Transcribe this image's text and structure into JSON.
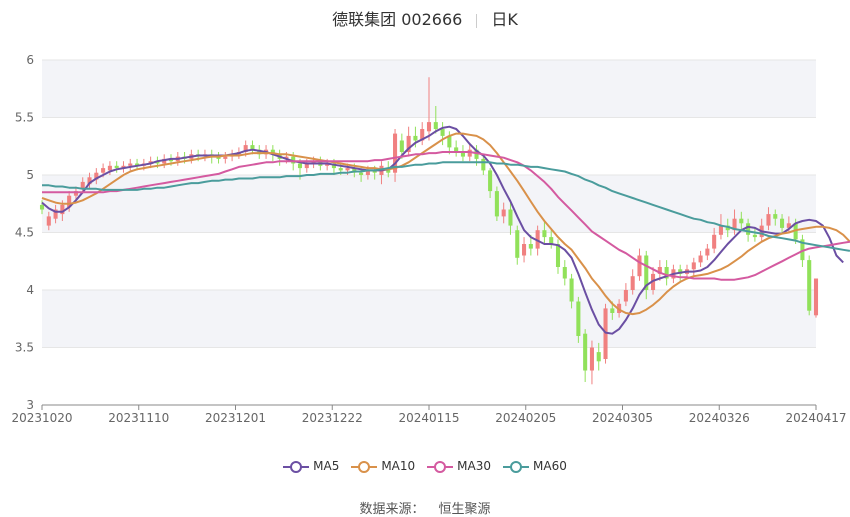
{
  "header": {
    "title": "德联集团 002666",
    "period": "日K"
  },
  "footer": {
    "source_label": "数据来源：",
    "source_name": "恒生聚源"
  },
  "colors": {
    "up": "#F08080",
    "down": "#91E15A",
    "MA5": "#6B4FA3",
    "MA10": "#D9914A",
    "MA30": "#D45AA0",
    "MA60": "#4A9C9C",
    "grid": "#e6e6e6",
    "band": "#f3f4f8"
  },
  "chart_data": {
    "type": "candlestick",
    "ylim": [
      3,
      6
    ],
    "yticks": [
      3,
      3.5,
      4,
      4.5,
      5,
      5.5,
      6
    ],
    "xticks": [
      "20231020",
      "20231110",
      "20231201",
      "20231222",
      "20240115",
      "20240205",
      "20240305",
      "20240326",
      "20240417"
    ],
    "candles": [
      [
        4.74,
        4.7,
        4.78,
        4.66
      ],
      [
        4.56,
        4.64,
        4.68,
        4.52
      ],
      [
        4.62,
        4.7,
        4.74,
        4.58
      ],
      [
        4.66,
        4.74,
        4.78,
        4.6
      ],
      [
        4.72,
        4.82,
        4.86,
        4.68
      ],
      [
        4.82,
        4.86,
        4.9,
        4.78
      ],
      [
        4.88,
        4.94,
        4.98,
        4.84
      ],
      [
        4.92,
        4.98,
        5.02,
        4.88
      ],
      [
        4.96,
        5.02,
        5.06,
        4.92
      ],
      [
        5.02,
        5.06,
        5.1,
        4.98
      ],
      [
        5.04,
        5.08,
        5.12,
        5.0
      ],
      [
        5.08,
        5.06,
        5.12,
        5.02
      ],
      [
        5.06,
        5.08,
        5.12,
        5.02
      ],
      [
        5.08,
        5.1,
        5.14,
        5.04
      ],
      [
        5.1,
        5.08,
        5.14,
        5.04
      ],
      [
        5.08,
        5.1,
        5.14,
        5.04
      ],
      [
        5.1,
        5.12,
        5.16,
        5.06
      ],
      [
        5.12,
        5.1,
        5.16,
        5.06
      ],
      [
        5.1,
        5.14,
        5.18,
        5.06
      ],
      [
        5.14,
        5.12,
        5.18,
        5.08
      ],
      [
        5.12,
        5.16,
        5.2,
        5.08
      ],
      [
        5.16,
        5.14,
        5.2,
        5.1
      ],
      [
        5.14,
        5.18,
        5.22,
        5.1
      ],
      [
        5.18,
        5.16,
        5.22,
        5.12
      ],
      [
        5.16,
        5.18,
        5.22,
        5.12
      ],
      [
        5.18,
        5.16,
        5.22,
        5.1
      ],
      [
        5.16,
        5.14,
        5.2,
        5.1
      ],
      [
        5.14,
        5.16,
        5.2,
        5.1
      ],
      [
        5.16,
        5.18,
        5.22,
        5.12
      ],
      [
        5.18,
        5.2,
        5.24,
        5.14
      ],
      [
        5.2,
        5.26,
        5.3,
        5.16
      ],
      [
        5.26,
        5.22,
        5.3,
        5.18
      ],
      [
        5.22,
        5.18,
        5.26,
        5.14
      ],
      [
        5.18,
        5.22,
        5.26,
        5.14
      ],
      [
        5.22,
        5.18,
        5.26,
        5.12
      ],
      [
        5.18,
        5.14,
        5.22,
        5.08
      ],
      [
        5.14,
        5.16,
        5.2,
        5.1
      ],
      [
        5.16,
        5.1,
        5.2,
        5.04
      ],
      [
        5.1,
        5.06,
        5.14,
        4.96
      ],
      [
        5.06,
        5.1,
        5.14,
        5.02
      ],
      [
        5.1,
        5.12,
        5.16,
        5.06
      ],
      [
        5.12,
        5.08,
        5.16,
        5.04
      ],
      [
        5.08,
        5.1,
        5.14,
        5.04
      ],
      [
        5.1,
        5.06,
        5.14,
        5.0
      ],
      [
        5.06,
        5.04,
        5.1,
        5.0
      ],
      [
        5.04,
        5.06,
        5.1,
        5.0
      ],
      [
        5.06,
        5.02,
        5.1,
        4.98
      ],
      [
        5.02,
        5.0,
        5.06,
        4.94
      ],
      [
        5.0,
        5.04,
        5.08,
        4.96
      ],
      [
        5.04,
        5.02,
        5.08,
        4.96
      ],
      [
        5.0,
        5.08,
        5.12,
        4.92
      ],
      [
        5.06,
        5.02,
        5.12,
        4.98
      ],
      [
        5.02,
        5.36,
        5.4,
        4.94
      ],
      [
        5.3,
        5.2,
        5.36,
        5.14
      ],
      [
        5.2,
        5.34,
        5.42,
        5.16
      ],
      [
        5.34,
        5.3,
        5.42,
        5.24
      ],
      [
        5.3,
        5.4,
        5.46,
        5.26
      ],
      [
        5.38,
        5.46,
        5.85,
        5.3
      ],
      [
        5.46,
        5.4,
        5.6,
        5.36
      ],
      [
        5.4,
        5.34,
        5.46,
        5.26
      ],
      [
        5.34,
        5.24,
        5.38,
        5.18
      ],
      [
        5.24,
        5.2,
        5.3,
        5.16
      ],
      [
        5.2,
        5.16,
        5.26,
        5.12
      ],
      [
        5.16,
        5.22,
        5.28,
        5.12
      ],
      [
        5.22,
        5.14,
        5.26,
        5.08
      ],
      [
        5.14,
        5.04,
        5.18,
        5.0
      ],
      [
        5.04,
        4.86,
        5.06,
        4.8
      ],
      [
        4.86,
        4.64,
        4.9,
        4.6
      ],
      [
        4.64,
        4.7,
        4.76,
        4.58
      ],
      [
        4.7,
        4.56,
        4.76,
        4.48
      ],
      [
        4.52,
        4.28,
        4.56,
        4.22
      ],
      [
        4.3,
        4.4,
        4.46,
        4.24
      ],
      [
        4.4,
        4.36,
        4.48,
        4.3
      ],
      [
        4.36,
        4.52,
        4.56,
        4.3
      ],
      [
        4.52,
        4.46,
        4.6,
        4.4
      ],
      [
        4.46,
        4.4,
        4.52,
        4.36
      ],
      [
        4.4,
        4.2,
        4.44,
        4.14
      ],
      [
        4.2,
        4.1,
        4.26,
        4.04
      ],
      [
        4.1,
        3.9,
        4.14,
        3.84
      ],
      [
        3.9,
        3.6,
        3.94,
        3.54
      ],
      [
        3.62,
        3.3,
        3.66,
        3.2
      ],
      [
        3.3,
        3.5,
        3.56,
        3.18
      ],
      [
        3.46,
        3.38,
        3.54,
        3.3
      ],
      [
        3.4,
        3.84,
        3.88,
        3.36
      ],
      [
        3.84,
        3.8,
        3.9,
        3.74
      ],
      [
        3.8,
        3.88,
        3.92,
        3.76
      ],
      [
        3.9,
        4.0,
        4.06,
        3.86
      ],
      [
        4.0,
        4.12,
        4.18,
        3.96
      ],
      [
        4.12,
        4.3,
        4.36,
        4.08
      ],
      [
        4.3,
        4.0,
        4.34,
        3.92
      ],
      [
        4.0,
        4.14,
        4.2,
        3.96
      ],
      [
        4.14,
        4.2,
        4.26,
        4.08
      ],
      [
        4.2,
        4.1,
        4.26,
        4.04
      ],
      [
        4.1,
        4.18,
        4.22,
        4.06
      ],
      [
        4.18,
        4.14,
        4.22,
        4.08
      ],
      [
        4.14,
        4.18,
        4.22,
        4.1
      ],
      [
        4.18,
        4.24,
        4.28,
        4.12
      ],
      [
        4.24,
        4.3,
        4.34,
        4.2
      ],
      [
        4.3,
        4.36,
        4.4,
        4.26
      ],
      [
        4.36,
        4.48,
        4.54,
        4.32
      ],
      [
        4.48,
        4.56,
        4.66,
        4.44
      ],
      [
        4.56,
        4.52,
        4.62,
        4.46
      ],
      [
        4.52,
        4.62,
        4.7,
        4.48
      ],
      [
        4.62,
        4.58,
        4.68,
        4.52
      ],
      [
        4.58,
        4.48,
        4.62,
        4.42
      ],
      [
        4.48,
        4.46,
        4.54,
        4.42
      ],
      [
        4.46,
        4.56,
        4.62,
        4.42
      ],
      [
        4.56,
        4.66,
        4.72,
        4.52
      ],
      [
        4.66,
        4.62,
        4.7,
        4.56
      ],
      [
        4.62,
        4.54,
        4.66,
        4.5
      ],
      [
        4.54,
        4.58,
        4.64,
        4.5
      ],
      [
        4.58,
        4.44,
        4.62,
        4.4
      ],
      [
        4.44,
        4.26,
        4.48,
        4.2
      ],
      [
        4.26,
        3.82,
        4.3,
        3.78
      ],
      [
        3.78,
        4.1,
        4.1,
        3.76
      ]
    ],
    "series": [
      {
        "name": "MA5",
        "values": [
          4.76,
          4.71,
          4.68,
          4.68,
          4.72,
          4.78,
          4.85,
          4.93,
          4.97,
          5.0,
          5.03,
          5.05,
          5.06,
          5.07,
          5.08,
          5.09,
          5.1,
          5.12,
          5.13,
          5.14,
          5.14,
          5.15,
          5.16,
          5.17,
          5.17,
          5.17,
          5.17,
          5.17,
          5.18,
          5.19,
          5.21,
          5.22,
          5.21,
          5.2,
          5.18,
          5.16,
          5.14,
          5.12,
          5.11,
          5.1,
          5.1,
          5.1,
          5.1,
          5.09,
          5.08,
          5.07,
          5.06,
          5.05,
          5.04,
          5.04,
          5.04,
          5.05,
          5.1,
          5.17,
          5.23,
          5.28,
          5.31,
          5.34,
          5.38,
          5.41,
          5.42,
          5.4,
          5.34,
          5.27,
          5.21,
          5.17,
          5.1,
          5.0,
          4.88,
          4.77,
          4.64,
          4.52,
          4.46,
          4.43,
          4.4,
          4.4,
          4.39,
          4.35,
          4.28,
          4.14,
          3.98,
          3.83,
          3.7,
          3.63,
          3.62,
          3.66,
          3.74,
          3.84,
          3.96,
          4.04,
          4.08,
          4.1,
          4.12,
          4.14,
          4.15,
          4.16,
          4.16,
          4.17,
          4.2,
          4.26,
          4.33,
          4.4,
          4.46,
          4.52,
          4.55,
          4.54,
          4.51,
          4.5,
          4.49,
          4.49,
          4.53,
          4.58,
          4.6,
          4.61,
          4.6,
          4.56,
          4.45,
          4.3,
          4.24
        ]
      },
      {
        "name": "MA10",
        "values": [
          4.8,
          4.78,
          4.76,
          4.75,
          4.75,
          4.76,
          4.78,
          4.81,
          4.84,
          4.88,
          4.92,
          4.96,
          5.0,
          5.03,
          5.05,
          5.06,
          5.07,
          5.08,
          5.09,
          5.1,
          5.11,
          5.12,
          5.13,
          5.14,
          5.15,
          5.16,
          5.16,
          5.17,
          5.17,
          5.17,
          5.18,
          5.19,
          5.19,
          5.19,
          5.19,
          5.18,
          5.18,
          5.17,
          5.16,
          5.15,
          5.14,
          5.13,
          5.12,
          5.11,
          5.1,
          5.09,
          5.08,
          5.07,
          5.06,
          5.06,
          5.05,
          5.05,
          5.06,
          5.08,
          5.11,
          5.15,
          5.19,
          5.23,
          5.27,
          5.31,
          5.34,
          5.36,
          5.36,
          5.35,
          5.34,
          5.31,
          5.26,
          5.19,
          5.11,
          5.03,
          4.95,
          4.86,
          4.77,
          4.68,
          4.6,
          4.53,
          4.46,
          4.4,
          4.35,
          4.27,
          4.19,
          4.1,
          4.03,
          3.95,
          3.88,
          3.83,
          3.8,
          3.79,
          3.8,
          3.83,
          3.87,
          3.92,
          3.98,
          4.03,
          4.07,
          4.1,
          4.12,
          4.13,
          4.14,
          4.16,
          4.18,
          4.21,
          4.25,
          4.29,
          4.34,
          4.38,
          4.42,
          4.45,
          4.47,
          4.49,
          4.5,
          4.52,
          4.53,
          4.54,
          4.55,
          4.55,
          4.54,
          4.52,
          4.48,
          4.42
        ]
      },
      {
        "name": "MA30",
        "values": [
          4.85,
          4.85,
          4.85,
          4.85,
          4.85,
          4.85,
          4.85,
          4.85,
          4.85,
          4.85,
          4.86,
          4.86,
          4.87,
          4.88,
          4.89,
          4.9,
          4.91,
          4.92,
          4.93,
          4.94,
          4.95,
          4.96,
          4.97,
          4.98,
          4.99,
          5.0,
          5.01,
          5.03,
          5.05,
          5.07,
          5.08,
          5.09,
          5.1,
          5.11,
          5.11,
          5.12,
          5.12,
          5.12,
          5.12,
          5.12,
          5.12,
          5.12,
          5.12,
          5.12,
          5.12,
          5.12,
          5.12,
          5.12,
          5.12,
          5.13,
          5.13,
          5.14,
          5.15,
          5.16,
          5.17,
          5.18,
          5.18,
          5.19,
          5.19,
          5.2,
          5.2,
          5.2,
          5.2,
          5.2,
          5.19,
          5.18,
          5.17,
          5.16,
          5.15,
          5.13,
          5.11,
          5.08,
          5.04,
          4.99,
          4.94,
          4.88,
          4.81,
          4.75,
          4.69,
          4.63,
          4.57,
          4.51,
          4.47,
          4.43,
          4.39,
          4.35,
          4.32,
          4.28,
          4.24,
          4.21,
          4.18,
          4.15,
          4.13,
          4.12,
          4.11,
          4.11,
          4.1,
          4.1,
          4.1,
          4.1,
          4.09,
          4.09,
          4.09,
          4.1,
          4.11,
          4.13,
          4.16,
          4.19,
          4.22,
          4.25,
          4.28,
          4.31,
          4.34,
          4.36,
          4.37,
          4.38,
          4.39,
          4.4,
          4.41,
          4.42
        ]
      },
      {
        "name": "MA60",
        "values": [
          4.91,
          4.91,
          4.9,
          4.9,
          4.89,
          4.89,
          4.88,
          4.88,
          4.88,
          4.87,
          4.87,
          4.87,
          4.87,
          4.87,
          4.87,
          4.88,
          4.88,
          4.89,
          4.89,
          4.9,
          4.91,
          4.92,
          4.93,
          4.93,
          4.94,
          4.95,
          4.95,
          4.96,
          4.96,
          4.97,
          4.97,
          4.97,
          4.98,
          4.98,
          4.98,
          4.98,
          4.99,
          4.99,
          4.99,
          5.0,
          5.0,
          5.01,
          5.01,
          5.01,
          5.02,
          5.02,
          5.03,
          5.03,
          5.04,
          5.04,
          5.05,
          5.06,
          5.07,
          5.07,
          5.08,
          5.09,
          5.09,
          5.1,
          5.1,
          5.11,
          5.11,
          5.11,
          5.11,
          5.11,
          5.11,
          5.11,
          5.11,
          5.1,
          5.1,
          5.09,
          5.09,
          5.08,
          5.07,
          5.07,
          5.06,
          5.05,
          5.04,
          5.03,
          5.01,
          4.99,
          4.96,
          4.94,
          4.91,
          4.89,
          4.86,
          4.84,
          4.82,
          4.8,
          4.78,
          4.76,
          4.74,
          4.72,
          4.7,
          4.68,
          4.66,
          4.64,
          4.62,
          4.61,
          4.59,
          4.58,
          4.56,
          4.55,
          4.53,
          4.52,
          4.51,
          4.5,
          4.49,
          4.47,
          4.46,
          4.45,
          4.44,
          4.43,
          4.41,
          4.4,
          4.39,
          4.38,
          4.37,
          4.36,
          4.35,
          4.34
        ]
      }
    ]
  }
}
